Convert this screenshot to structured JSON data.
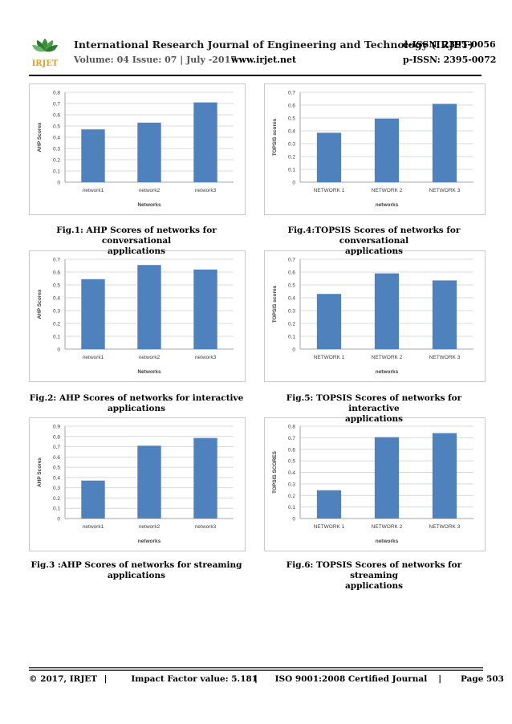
{
  "header": {
    "logo_text": "IRJET",
    "title": "International Research Journal of Engineering and Technology (IRJET)",
    "eissn": "e-ISSN: 2395-0056",
    "volume": "Volume: 04 Issue: 07 | July -2017",
    "website": "www.irjet.net",
    "pissn": "p-ISSN: 2395-0072"
  },
  "figures": [
    {
      "caption_line1": "Fig.1: AHP Scores of networks for conversational",
      "caption_line2": "applications"
    },
    {
      "caption_line1": "Fig.4:TOPSIS Scores of networks for conversational",
      "caption_line2": "applications"
    },
    {
      "caption_line1": "Fig.2: AHP Scores of networks for interactive",
      "caption_line2": "applications"
    },
    {
      "caption_line1": "Fig.5: TOPSIS Scores of networks for interactive",
      "caption_line2": "applications"
    },
    {
      "caption_line1": "Fig.3 :AHP Scores of networks for streaming",
      "caption_line2": "applications"
    },
    {
      "caption_line1": "Fig.6: TOPSIS Scores of networks for streaming",
      "caption_line2": "applications"
    }
  ],
  "chart_data": [
    {
      "type": "bar",
      "categories": [
        "network1",
        "network2",
        "network3"
      ],
      "values": [
        0.47,
        0.53,
        0.71
      ],
      "xlabel": "Networks",
      "ylabel": "AHP Scores",
      "ylim": [
        0,
        0.8
      ],
      "yticks": [
        "0",
        "0.1",
        "0.2",
        "0.3",
        "0.4",
        "0.5",
        "0.6",
        "0.7",
        "0.8"
      ],
      "grid": true,
      "bar_color": "#4f81bd"
    },
    {
      "type": "bar",
      "categories": [
        "NETWORK 1",
        "NETWORK 2",
        "NETWORK 3"
      ],
      "values": [
        0.385,
        0.495,
        0.61
      ],
      "xlabel": "networks",
      "ylabel": "TOPSIS scores",
      "ylim": [
        0,
        0.7
      ],
      "yticks": [
        "0",
        "0.1",
        "0.2",
        "0.3",
        "0.4",
        "0.5",
        "0.6",
        "0.7"
      ],
      "grid": true,
      "bar_color": "#4f81bd"
    },
    {
      "type": "bar",
      "categories": [
        "network1",
        "network2",
        "network3"
      ],
      "values": [
        0.545,
        0.655,
        0.62
      ],
      "xlabel": "Networks",
      "ylabel": "AHP Scores",
      "ylim": [
        0,
        0.7
      ],
      "yticks": [
        "0",
        "0.1",
        "0.2",
        "0.3",
        "0.4",
        "0.5",
        "0.6",
        "0.7"
      ],
      "grid": true,
      "bar_color": "#4f81bd"
    },
    {
      "type": "bar",
      "categories": [
        "NETWORK 1",
        "NETWORK 2",
        "NETWORK 3"
      ],
      "values": [
        0.43,
        0.59,
        0.535
      ],
      "xlabel": "networks",
      "ylabel": "TOPSIS scores",
      "ylim": [
        0,
        0.7
      ],
      "yticks": [
        "0",
        "0.1",
        "0.2",
        "0.3",
        "0.4",
        "0.5",
        "0.6",
        "0.7"
      ],
      "grid": true,
      "bar_color": "#4f81bd"
    },
    {
      "type": "bar",
      "categories": [
        "network1",
        "network2",
        "network3"
      ],
      "values": [
        0.37,
        0.71,
        0.785
      ],
      "xlabel": "networks",
      "ylabel": "AHP Scores",
      "ylim": [
        0,
        0.9
      ],
      "yticks": [
        "0",
        "0.1",
        "0.2",
        "0.3",
        "0.4",
        "0.5",
        "0.6",
        "0.7",
        "0.8",
        "0.9"
      ],
      "grid": true,
      "bar_color": "#4f81bd"
    },
    {
      "type": "bar",
      "categories": [
        "NETWORK 1",
        "NETWORK 2",
        "NETWORK 3"
      ],
      "values": [
        0.245,
        0.705,
        0.74
      ],
      "xlabel": "networks",
      "ylabel": "TOPSIS SCORES",
      "ylim": [
        0,
        0.8
      ],
      "yticks": [
        "0",
        "0.1",
        "0.2",
        "0.3",
        "0.4",
        "0.5",
        "0.6",
        "0.7",
        "0.8"
      ],
      "grid": true,
      "bar_color": "#4f81bd"
    }
  ],
  "footer": {
    "copyright": "© 2017, IRJET",
    "sep": "|",
    "impact": "Impact Factor value: 5.181",
    "iso": "ISO 9001:2008 Certified Journal",
    "page": "Page 503",
    "line_colors": [
      "#1f3864",
      "#c00000",
      "#1f3864"
    ]
  }
}
